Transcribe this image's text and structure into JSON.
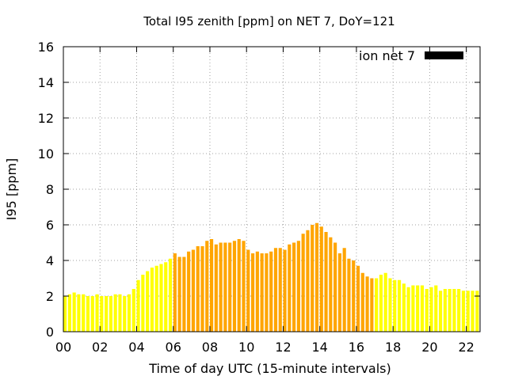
{
  "chart_data": {
    "type": "bar",
    "title": "Total I95 zenith [ppm] on NET 7, DoY=121",
    "xlabel": "Time of day UTC (15-minute intervals)",
    "ylabel": "I95 [ppm]",
    "xlim": [
      0,
      22.75
    ],
    "ylim": [
      0,
      16
    ],
    "xticks": [
      "00",
      "02",
      "04",
      "06",
      "08",
      "10",
      "12",
      "14",
      "16",
      "18",
      "20",
      "22"
    ],
    "yticks": [
      "0",
      "2",
      "4",
      "6",
      "8",
      "10",
      "12",
      "14",
      "16"
    ],
    "grid": true,
    "legend": {
      "label": "ion net 7",
      "position": "top-right",
      "color": "#000000"
    },
    "colors": {
      "low": "#ffff00",
      "high": "#ffa500"
    },
    "bar_interval_hours": 0.25,
    "values": [
      2.0,
      2.1,
      2.2,
      2.1,
      2.1,
      2.0,
      2.0,
      2.1,
      2.0,
      2.0,
      2.0,
      2.1,
      2.1,
      2.0,
      2.1,
      2.4,
      2.9,
      3.2,
      3.4,
      3.6,
      3.7,
      3.8,
      3.9,
      4.1,
      4.4,
      4.2,
      4.2,
      4.5,
      4.6,
      4.8,
      4.8,
      5.1,
      5.2,
      4.9,
      5.0,
      5.0,
      5.0,
      5.1,
      5.2,
      5.1,
      4.6,
      4.4,
      4.5,
      4.4,
      4.4,
      4.5,
      4.7,
      4.7,
      4.6,
      4.9,
      5.0,
      5.1,
      5.5,
      5.7,
      6.0,
      6.1,
      5.9,
      5.6,
      5.3,
      5.0,
      4.4,
      4.7,
      4.1,
      4.0,
      3.7,
      3.3,
      3.1,
      3.0,
      3.0,
      3.2,
      3.3,
      3.0,
      2.9,
      2.9,
      2.7,
      2.5,
      2.6,
      2.6,
      2.6,
      2.4,
      2.5,
      2.6,
      2.3,
      2.4,
      2.4,
      2.4,
      2.4,
      2.3,
      2.3,
      2.3,
      2.3
    ],
    "highlight_range": [
      6.0,
      16.75
    ]
  }
}
